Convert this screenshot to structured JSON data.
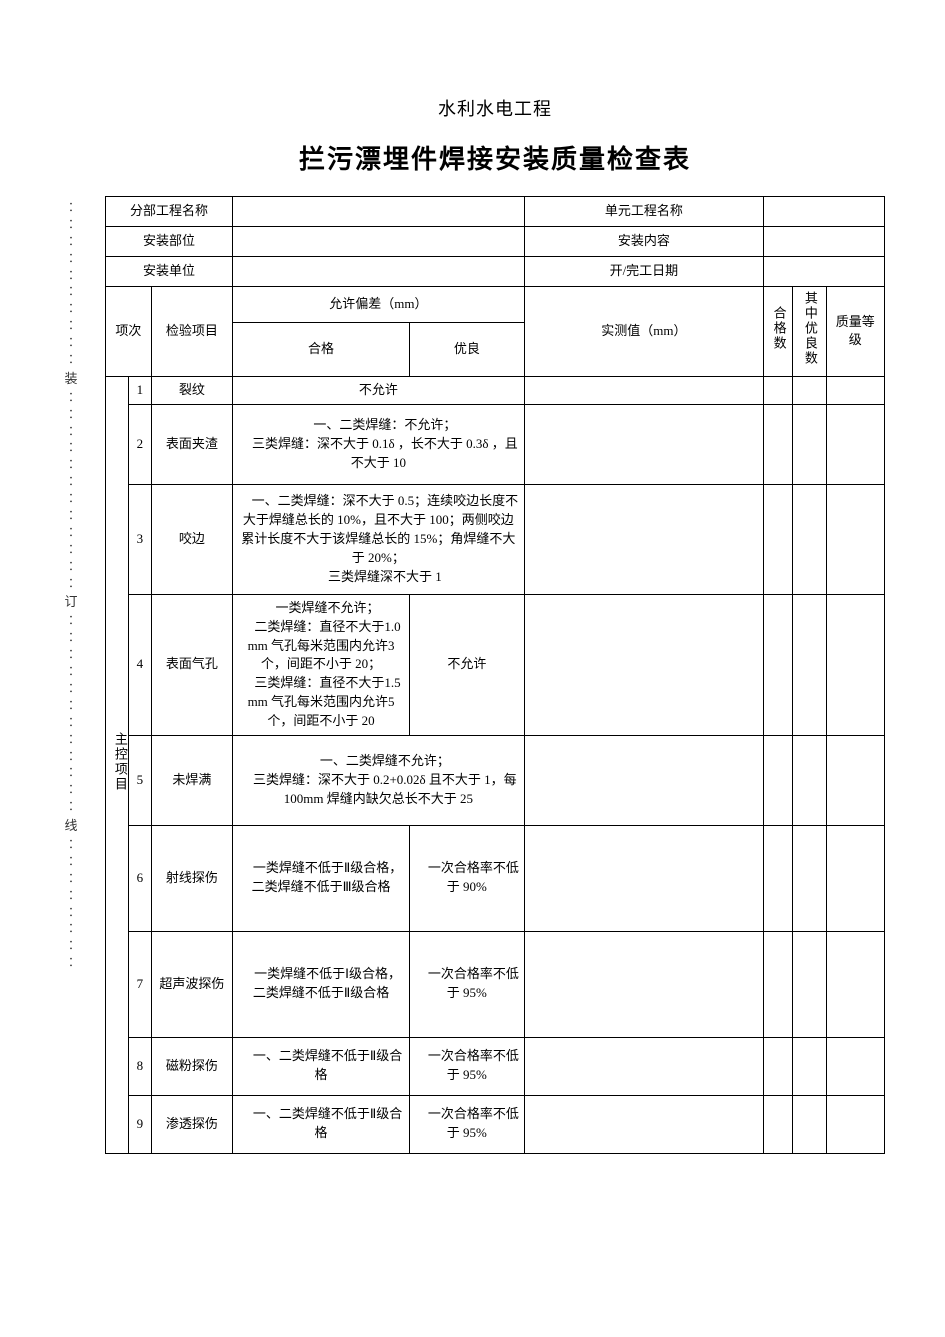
{
  "supertitle": "水利水电工程",
  "title": "拦污漂埋件焊接安装质量检查表",
  "info": {
    "sub_project_label": "分部工程名称",
    "sub_project_value": "",
    "unit_project_label": "单元工程名称",
    "unit_project_value": "",
    "install_pos_label": "安装部位",
    "install_pos_value": "",
    "install_content_label": "安装内容",
    "install_content_value": "",
    "install_unit_label": "安装单位",
    "install_unit_value": "",
    "date_label": "开/完工日期",
    "date_value": ""
  },
  "headers": {
    "seq": "项次",
    "check_item": "检验项目",
    "allow_dev": "允许偏差（mm）",
    "qualified": "合格",
    "excellent": "优良",
    "measured": "实测值（mm）",
    "pass_count": "合格数",
    "exc_count": "其中优良数",
    "grade": "质量等级"
  },
  "category": "主控项目",
  "rows": [
    {
      "n": "1",
      "item": "裂纹",
      "qual": "不允许",
      "good": null,
      "span": true
    },
    {
      "n": "2",
      "item": "表面夹渣",
      "qual": "　一、二类焊缝：不允许；\n　三类焊缝：深不大于 0.1δ ，长不大于 0.3δ ，且不大于 10",
      "good": null,
      "span": true
    },
    {
      "n": "3",
      "item": "咬边",
      "qual": "　一、二类焊缝：深不大于 0.5；连续咬边长度不大于焊缝总长的 10%，且不大于 100；两侧咬边累计长度不大于该焊缝总长的 15%；角焊缝不大于 20%；\n　三类焊缝深不大于 1",
      "good": null,
      "span": true
    },
    {
      "n": "4",
      "item": "表面气孔",
      "qual": "　一类焊缝不允许；\n　二类焊缝：直径不大于1.0mm 气孔每米范围内允许3 个，间距不小于 20；\n　三类焊缝：直径不大于1.5mm 气孔每米范围内允许5 个，间距不小于 20",
      "good": "不允许",
      "span": false
    },
    {
      "n": "5",
      "item": "未焊满",
      "qual": "　一、二类焊缝不允许；\n　三类焊缝：深不大于 0.2+0.02δ 且不大于 1，每 100mm 焊缝内缺欠总长不大于 25",
      "good": null,
      "span": true
    },
    {
      "n": "6",
      "item": "射线探伤",
      "qual": "　一类焊缝不低于Ⅱ级合格，二类焊缝不低于Ⅲ级合格",
      "good": "　一次合格率不低于 90%",
      "span": false
    },
    {
      "n": "7",
      "item": "超声波探伤",
      "qual": "　一类焊缝不低于Ⅰ级合格，二类焊缝不低于Ⅱ级合格",
      "good": "　一次合格率不低于 95%",
      "span": false
    },
    {
      "n": "8",
      "item": "磁粉探伤",
      "qual": "　一、二类焊缝不低于Ⅱ级合格",
      "good": "　一次合格率不低于 95%",
      "span": false
    },
    {
      "n": "9",
      "item": "渗透探伤",
      "qual": "　一、二类焊缝不低于Ⅱ级合格",
      "good": "　一次合格率不低于 95%",
      "span": false
    }
  ],
  "binding": {
    "chars": [
      "装",
      "订",
      "线"
    ]
  },
  "colors": {
    "text": "#000000",
    "border": "#000000",
    "background": "#ffffff"
  },
  "typography": {
    "body_fontsize_pt": 10,
    "title_fontsize_pt": 20,
    "supertitle_fontsize_pt": 14
  }
}
